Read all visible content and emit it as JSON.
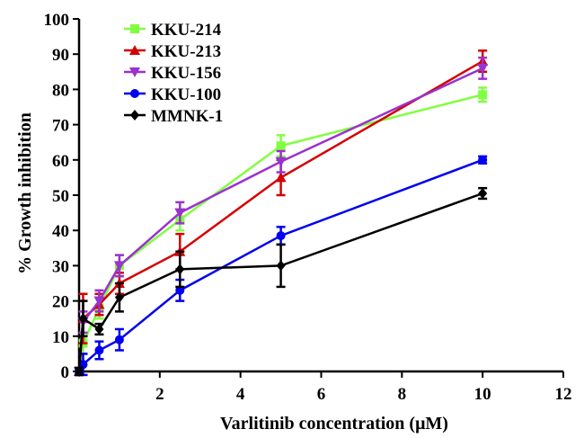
{
  "chart_data": {
    "type": "line",
    "title": "",
    "xlabel": "Varlitinib concentration (μM)",
    "ylabel": "% Growth inhibition",
    "xlim": [
      0,
      12
    ],
    "ylim": [
      0,
      100
    ],
    "xticks": [
      2,
      4,
      6,
      8,
      10,
      12
    ],
    "yticks": [
      0,
      10,
      20,
      30,
      40,
      50,
      60,
      70,
      80,
      90,
      100
    ],
    "xtick_labels": [
      "2",
      "4",
      "6",
      "8",
      "10",
      "12"
    ],
    "ytick_labels": [
      "0",
      "10",
      "20",
      "30",
      "40",
      "50",
      "60",
      "70",
      "80",
      "90",
      "100"
    ],
    "grid": false,
    "legend_position": "top-left",
    "series": [
      {
        "name": "KKU-214",
        "color": "#80ff40",
        "marker": "square",
        "x": [
          0,
          0.1,
          0.5,
          1,
          2.5,
          5,
          10
        ],
        "y": [
          0,
          8,
          18,
          30,
          43,
          64,
          78.5
        ],
        "err": [
          1,
          3,
          3,
          3,
          3,
          3,
          2
        ]
      },
      {
        "name": "KKU-213",
        "color": "#d40000",
        "marker": "triangle-up",
        "x": [
          0,
          0.1,
          0.5,
          1,
          2.5,
          5,
          10
        ],
        "y": [
          0,
          15,
          19,
          25,
          34,
          55,
          88
        ],
        "err": [
          1,
          7,
          3,
          3,
          5,
          5,
          3
        ]
      },
      {
        "name": "KKU-156",
        "color": "#9a32cd",
        "marker": "triangle-down",
        "x": [
          0,
          0.1,
          0.5,
          1,
          2.5,
          5,
          10
        ],
        "y": [
          0,
          14,
          20,
          30,
          45,
          59.5,
          86
        ],
        "err": [
          1,
          3,
          3,
          3,
          3,
          3,
          3
        ]
      },
      {
        "name": "KKU-100",
        "color": "#0000ee",
        "marker": "circle",
        "x": [
          0,
          0.1,
          0.5,
          1,
          2.5,
          5,
          10
        ],
        "y": [
          0,
          2,
          6,
          9,
          23,
          38.5,
          60
        ],
        "err": [
          1,
          3,
          2.5,
          3,
          3,
          2.5,
          1
        ]
      },
      {
        "name": "MMNK-1",
        "color": "#000000",
        "marker": "diamond",
        "x": [
          0,
          0.1,
          0.5,
          1,
          2.5,
          5,
          10
        ],
        "y": [
          0,
          15,
          12,
          21,
          29,
          30,
          50.5
        ],
        "err": [
          1,
          5,
          1.5,
          4,
          5,
          6,
          1.5
        ]
      }
    ]
  }
}
